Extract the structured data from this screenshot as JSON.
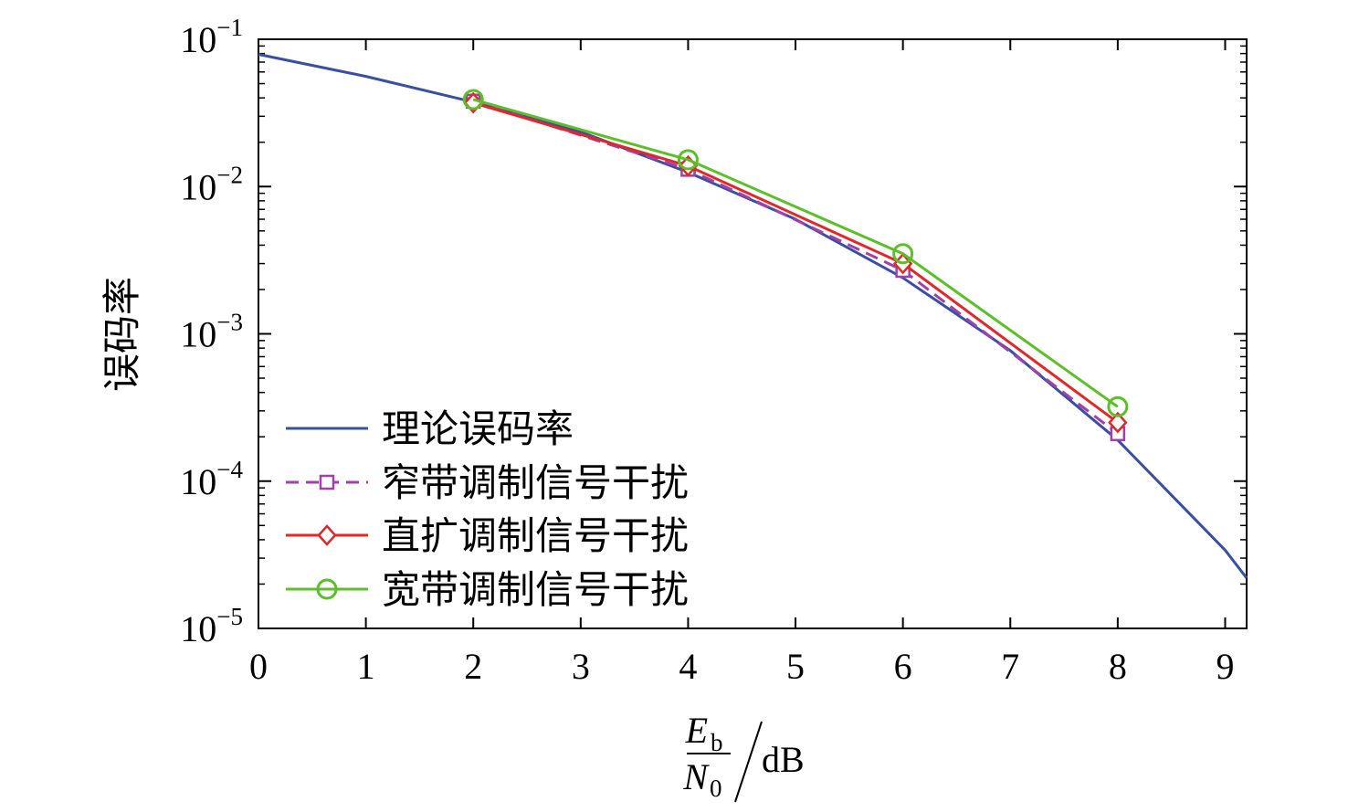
{
  "chart_data": {
    "type": "line",
    "y_scale": "log",
    "xlim": [
      0,
      9.2
    ],
    "ylim": [
      1e-05,
      0.1
    ],
    "x_ticks": [
      "0",
      "1",
      "2",
      "3",
      "4",
      "5",
      "6",
      "7",
      "8",
      "9"
    ],
    "y_ticks": [
      {
        "base": "10",
        "exp": "−1",
        "value": 0.1
      },
      {
        "base": "10",
        "exp": "−2",
        "value": 0.01
      },
      {
        "base": "10",
        "exp": "−3",
        "value": 0.001
      },
      {
        "base": "10",
        "exp": "−4",
        "value": 0.0001
      },
      {
        "base": "10",
        "exp": "−5",
        "value": 1e-05
      }
    ],
    "ylabel": "误码率",
    "xlabel": {
      "num_main": "E",
      "num_sub": "b",
      "den_main": "N",
      "den_sub": "0",
      "unit": "dB"
    },
    "grid": false,
    "legend_position": "lower-left",
    "series": [
      {
        "name": "理论误码率",
        "color": "#3a4fa0",
        "marker": "none",
        "dash": "solid",
        "x": [
          0,
          1,
          2,
          3,
          4,
          5,
          6,
          7,
          8,
          9,
          9.2
        ],
        "y": [
          0.079,
          0.056,
          0.0375,
          0.0235,
          0.0125,
          0.006,
          0.0024,
          0.00077,
          0.00019,
          3.4e-05,
          2.2e-05
        ]
      },
      {
        "name": "窄带调制信号干扰",
        "color": "#a040a8",
        "marker": "square",
        "dash": "dashed",
        "x": [
          2,
          4,
          6,
          8
        ],
        "y": [
          0.038,
          0.0131,
          0.0027,
          0.00021
        ]
      },
      {
        "name": "直扩调制信号干扰",
        "color": "#e02828",
        "marker": "diamond",
        "dash": "solid",
        "x": [
          2,
          4,
          6,
          8
        ],
        "y": [
          0.037,
          0.0138,
          0.003,
          0.00025
        ]
      },
      {
        "name": "宽带调制信号干扰",
        "color": "#5cbf2a",
        "marker": "circle",
        "dash": "solid",
        "x": [
          2,
          4,
          6,
          8
        ],
        "y": [
          0.039,
          0.0152,
          0.0035,
          0.00032
        ]
      }
    ]
  }
}
